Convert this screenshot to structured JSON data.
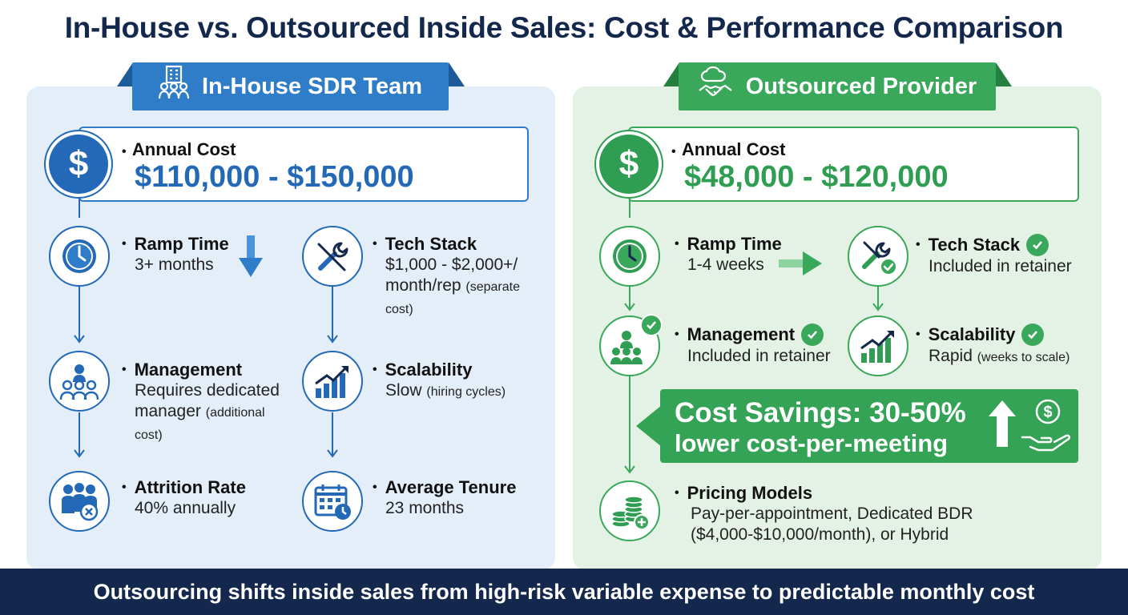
{
  "title": "In-House vs. Outsourced Inside Sales: Cost & Performance Comparison",
  "footer": "Outsourcing shifts inside sales from high-risk variable expense to predictable monthly cost",
  "colors": {
    "navy": "#13284c",
    "blue": "#2369b8",
    "green": "#2f9e52",
    "blue_panel": "#e3eef9",
    "green_panel": "#e3f2e5"
  },
  "inhouse": {
    "header": "In-House SDR Team",
    "annual_cost": {
      "label": "Annual Cost",
      "value": "$110,000 - $150,000"
    },
    "ramp": {
      "title": "Ramp Time",
      "line1": "3+ months"
    },
    "tech": {
      "title": "Tech Stack",
      "line1": "$1,000 - $2,000+/",
      "line2": "month/rep",
      "note_a": "(separate",
      "note_b": "cost)"
    },
    "management": {
      "title": "Management",
      "line1": "Requires dedicated",
      "line2": "manager",
      "note_a": "(additional",
      "note_b": "cost)"
    },
    "scalability": {
      "title": "Scalability",
      "line1": "Slow",
      "note": "(hiring cycles)"
    },
    "attrition": {
      "title": "Attrition Rate",
      "line1": "40% annually"
    },
    "tenure": {
      "title": "Average Tenure",
      "line1": "23 months"
    }
  },
  "outsourced": {
    "header": "Outsourced Provider",
    "annual_cost": {
      "label": "Annual Cost",
      "value": "$48,000 - $120,000"
    },
    "ramp": {
      "title": "Ramp Time",
      "line1": "1-4 weeks"
    },
    "tech": {
      "title": "Tech Stack",
      "line1": "Included in retainer"
    },
    "management": {
      "title": "Management",
      "line1": "Included in retainer"
    },
    "scalability": {
      "title": "Scalability",
      "line1": "Rapid",
      "note": "(weeks to scale)"
    },
    "savings": {
      "line1": "Cost Savings: 30-50%",
      "line2": "lower cost-per-meeting"
    },
    "pricing": {
      "title": "Pricing Models",
      "line1": "Pay-per-appointment, Dedicated BDR",
      "line2": "($4,000-$10,000/month), or Hybrid"
    }
  },
  "icons": [
    "building-people-icon",
    "cloud-handshake-icon",
    "dollar-icon",
    "clock-icon",
    "tools-icon",
    "manager-team-icon",
    "growth-chart-icon",
    "team-remove-icon",
    "calendar-clock-icon",
    "check-icon",
    "coins-plus-icon",
    "hand-coin-icon",
    "arrow-up-icon"
  ]
}
